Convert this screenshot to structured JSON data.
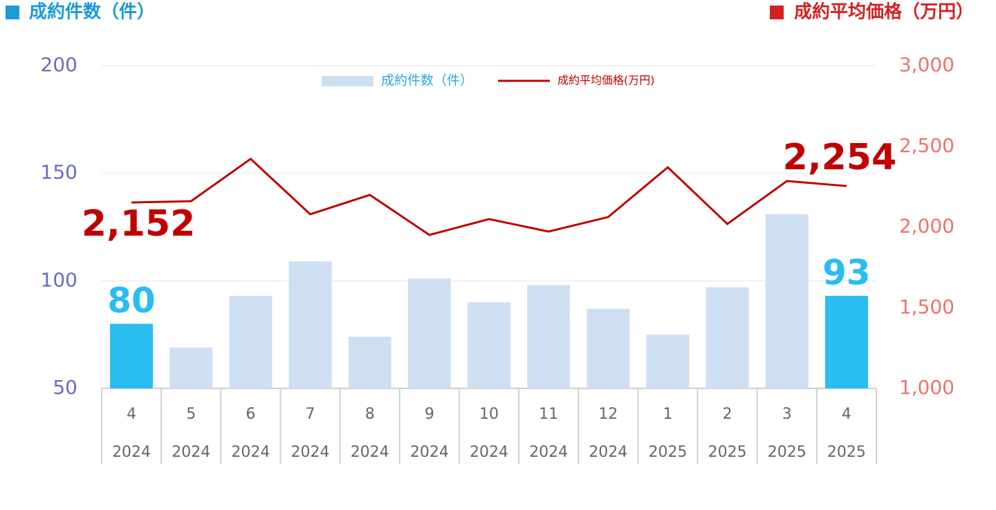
{
  "chart_data": {
    "type": "combo",
    "title": "成約件数（件）",
    "title_color": "#1a9ad6",
    "title2": "成約平均価格（万円）",
    "title2_color": "#d42020",
    "categories": [
      "4",
      "5",
      "6",
      "7",
      "8",
      "9",
      "10",
      "11",
      "12",
      "1",
      "2",
      "3",
      "4"
    ],
    "category_groups": [
      "2024",
      "2024",
      "2024",
      "2024",
      "2024",
      "2024",
      "2024",
      "2024",
      "2024",
      "2025",
      "2025",
      "2025",
      "2025"
    ],
    "ylim": [
      50,
      200
    ],
    "yticks": [
      50,
      100,
      150,
      200
    ],
    "y2lim": [
      1000,
      3000
    ],
    "y2ticks": [
      {
        "value": 1000,
        "label": "1,000"
      },
      {
        "value": 1500,
        "label": "1,500"
      },
      {
        "value": 2000,
        "label": "2,000"
      },
      {
        "value": 2500,
        "label": "2,500"
      },
      {
        "value": 3000,
        "label": "3,000"
      }
    ],
    "grid": true,
    "series": [
      {
        "name": "成約件数（件）",
        "type": "bar",
        "color": "#cfdff3",
        "colors": [
          "#29bdf0",
          "#cfdff3",
          "#cfdff3",
          "#cfdff3",
          "#cfdff3",
          "#cfdff3",
          "#cfdff3",
          "#cfdff3",
          "#cfdff3",
          "#cfdff3",
          "#cfdff3",
          "#cfdff3",
          "#29bdf0"
        ],
        "values": [
          80,
          69,
          93,
          109,
          74,
          101,
          90,
          98,
          87,
          75,
          97,
          131,
          93
        ],
        "value_labels": [
          "80",
          null,
          null,
          null,
          null,
          null,
          null,
          null,
          null,
          null,
          null,
          null,
          "93"
        ]
      },
      {
        "name": "成約平均価格(万円)",
        "type": "line",
        "axis": "y2",
        "color": "#c00000",
        "values": [
          2152,
          2160,
          2422,
          2079,
          2199,
          1951,
          2049,
          1972,
          2062,
          2370,
          2019,
          2285,
          2254
        ],
        "value_labels": [
          "2,152",
          null,
          null,
          null,
          null,
          null,
          null,
          null,
          null,
          null,
          null,
          null,
          "2,254"
        ]
      }
    ]
  }
}
